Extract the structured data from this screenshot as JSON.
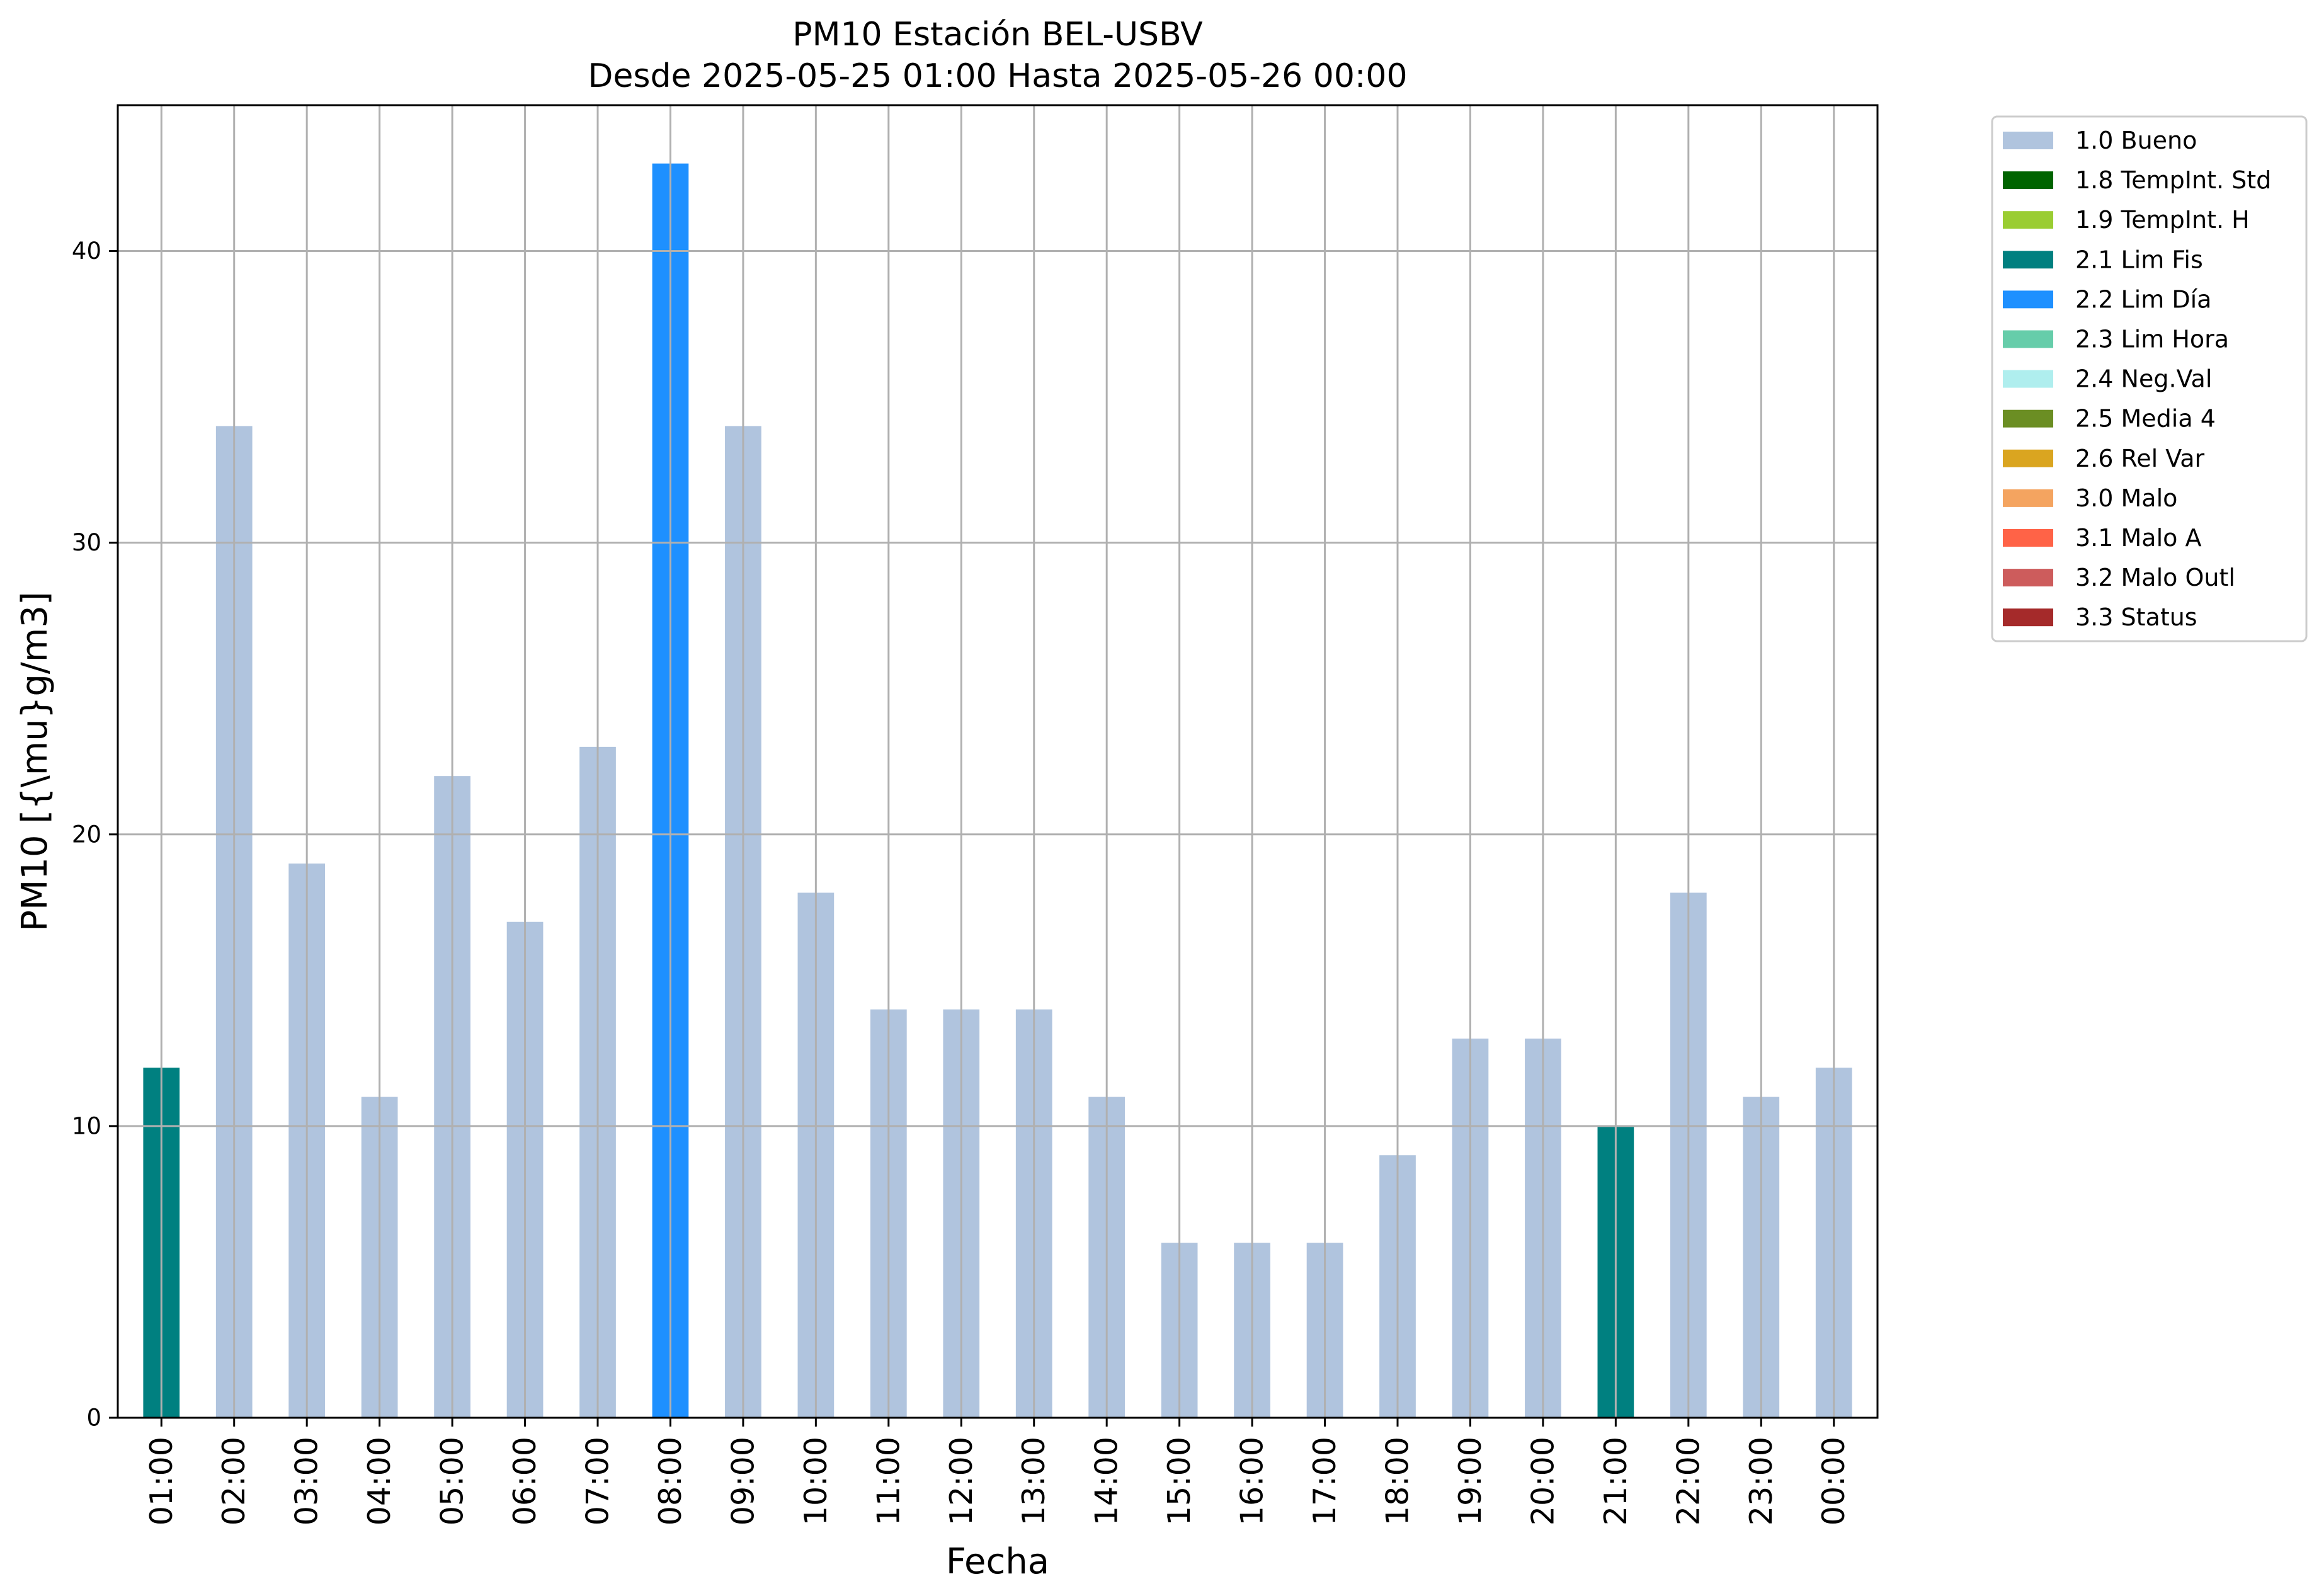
{
  "chart_data": {
    "type": "bar",
    "title": "PM10 Estación BEL-USBV",
    "subtitle": "Desde 2025-05-25 01:00 Hasta 2025-05-26 00:00",
    "xlabel": "Fecha",
    "ylabel": "PM10 [{\\mu}g/m3]",
    "ylim": [
      0,
      45
    ],
    "yticks": [
      0,
      10,
      20,
      30,
      40
    ],
    "grid": true,
    "legend_position": "outside-right-top",
    "categories": [
      "01:00",
      "02:00",
      "03:00",
      "04:00",
      "05:00",
      "06:00",
      "07:00",
      "08:00",
      "09:00",
      "10:00",
      "11:00",
      "12:00",
      "13:00",
      "14:00",
      "15:00",
      "16:00",
      "17:00",
      "18:00",
      "19:00",
      "20:00",
      "21:00",
      "22:00",
      "23:00",
      "00:00"
    ],
    "values": [
      12,
      34,
      19,
      11,
      22,
      17,
      23,
      43,
      34,
      18,
      14,
      14,
      14,
      11,
      6,
      6,
      6,
      9,
      13,
      13,
      10,
      18,
      11,
      12
    ],
    "flags": [
      "2.1 Lim Fis",
      "1.0 Bueno",
      "1.0 Bueno",
      "1.0 Bueno",
      "1.0 Bueno",
      "1.0 Bueno",
      "1.0 Bueno",
      "2.2 Lim Día",
      "1.0 Bueno",
      "1.0 Bueno",
      "1.0 Bueno",
      "1.0 Bueno",
      "1.0 Bueno",
      "1.0 Bueno",
      "1.0 Bueno",
      "1.0 Bueno",
      "1.0 Bueno",
      "1.0 Bueno",
      "1.0 Bueno",
      "1.0 Bueno",
      "2.1 Lim Fis",
      "1.0 Bueno",
      "1.0 Bueno",
      "1.0 Bueno"
    ],
    "legend": [
      {
        "label": "1.0 Bueno",
        "color": "#b0c4de"
      },
      {
        "label": "1.8 TempInt. Std",
        "color": "#006400"
      },
      {
        "label": "1.9 TempInt. H",
        "color": "#9acd32"
      },
      {
        "label": "2.1 Lim Fis",
        "color": "#008080"
      },
      {
        "label": "2.2 Lim Día",
        "color": "#1e90ff"
      },
      {
        "label": "2.3 Lim Hora",
        "color": "#66cdaa"
      },
      {
        "label": "2.4 Neg.Val",
        "color": "#afeeee"
      },
      {
        "label": "2.5 Media 4",
        "color": "#6b8e23"
      },
      {
        "label": "2.6 Rel Var",
        "color": "#daa520"
      },
      {
        "label": "3.0 Malo",
        "color": "#f4a460"
      },
      {
        "label": "3.1 Malo A",
        "color": "#ff6347"
      },
      {
        "label": "3.2 Malo Outl",
        "color": "#cd5c5c"
      },
      {
        "label": "3.3 Status",
        "color": "#a52a2a"
      }
    ]
  }
}
